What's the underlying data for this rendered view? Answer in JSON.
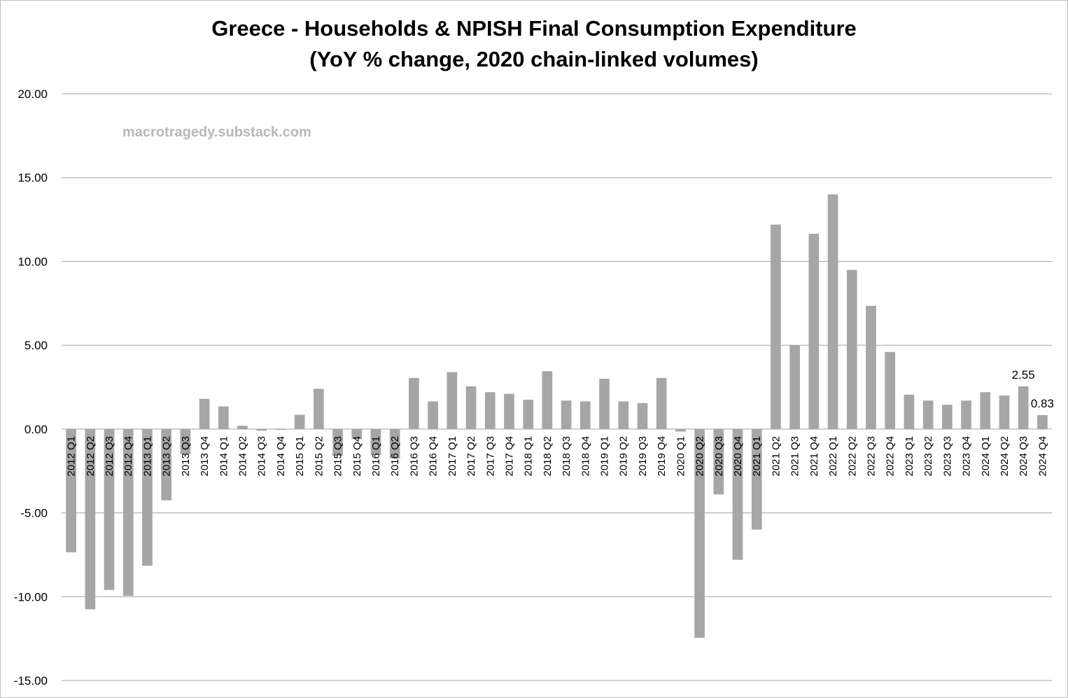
{
  "chart_data": {
    "type": "bar",
    "title": "Greece - Households & NPISH Final Consumption Expenditure",
    "subtitle": "(YoY % change, 2020 chain-linked volumes)",
    "watermark": "macrotragedy.substack.com",
    "xlabel": "",
    "ylabel": "",
    "ylim": [
      -15,
      20
    ],
    "yticks": [
      "20.00",
      "15.00",
      "10.00",
      "5.00",
      "0.00",
      "-5.00",
      "-10.00",
      "-15.00"
    ],
    "grid": true,
    "bar_color": "#a6a6a6",
    "categories": [
      "2012 Q1",
      "2012 Q2",
      "2012 Q3",
      "2012 Q4",
      "2013 Q1",
      "2013 Q2",
      "2013 Q3",
      "2013 Q4",
      "2014 Q1",
      "2014 Q2",
      "2014 Q3",
      "2014 Q4",
      "2015 Q1",
      "2015 Q2",
      "2015 Q3",
      "2015 Q4",
      "2016 Q1",
      "2016 Q2",
      "2016 Q3",
      "2016 Q4",
      "2017 Q1",
      "2017 Q2",
      "2017 Q3",
      "2017 Q4",
      "2018 Q1",
      "2018 Q2",
      "2018 Q3",
      "2018 Q4",
      "2019 Q1",
      "2019 Q2",
      "2019 Q3",
      "2019 Q4",
      "2020 Q1",
      "2020 Q2",
      "2020 Q3",
      "2020 Q4",
      "2021 Q1",
      "2021 Q2",
      "2021 Q3",
      "2021 Q4",
      "2022 Q1",
      "2022 Q2",
      "2022 Q3",
      "2022 Q4",
      "2023 Q1",
      "2023 Q2",
      "2023 Q3",
      "2023 Q4",
      "2024 Q1",
      "2024 Q2",
      "2024 Q3",
      "2024 Q4"
    ],
    "values": [
      -7.35,
      -10.75,
      -9.6,
      -9.95,
      -8.15,
      -4.25,
      -1.5,
      1.8,
      1.35,
      0.2,
      -0.1,
      -0.05,
      0.85,
      2.4,
      -1.6,
      -0.6,
      -1.55,
      -1.75,
      3.05,
      1.65,
      3.4,
      2.55,
      2.2,
      2.1,
      1.75,
      3.45,
      1.7,
      1.65,
      3.0,
      1.65,
      1.55,
      3.05,
      -0.15,
      -12.45,
      -3.9,
      -7.8,
      -6.0,
      12.2,
      5.0,
      11.65,
      14.0,
      9.5,
      7.35,
      4.6,
      2.05,
      1.7,
      1.45,
      1.7,
      2.2,
      2.0,
      2.55,
      0.83
    ],
    "data_labels": [
      {
        "category": "2024 Q3",
        "text": "2.55"
      },
      {
        "category": "2024 Q4",
        "text": "0.83"
      }
    ]
  }
}
